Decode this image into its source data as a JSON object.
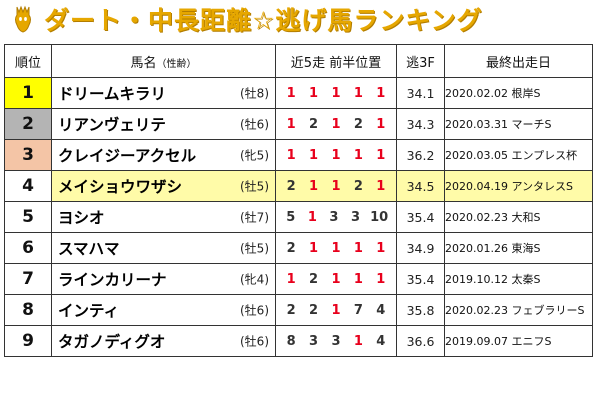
{
  "title": "ダート・中長距離☆逃げ馬ランキング",
  "header": {
    "rank": "順位",
    "name": "馬名",
    "name_sub": "（性齢）",
    "recent": "近5走 前半位置",
    "l3f": "逃3F",
    "last": "最終出走日"
  },
  "colors": {
    "title": "#e6a700",
    "rank1": "#ffff00",
    "rank2": "#b4b4b4",
    "rank3": "#f4c5a6",
    "highlight": "#fffba8",
    "first_position": "#e8001c"
  },
  "rows": [
    {
      "rank": "1",
      "name": "ドリームキラリ",
      "sexage": "(牡8)",
      "runs": [
        "1",
        "1",
        "1",
        "1",
        "1"
      ],
      "l3f": "34.1",
      "last": "2020.02.02 根岸S"
    },
    {
      "rank": "2",
      "name": "リアンヴェリテ",
      "sexage": "(牡6)",
      "runs": [
        "1",
        "2",
        "1",
        "2",
        "1"
      ],
      "l3f": "34.3",
      "last": "2020.03.31 マーチS"
    },
    {
      "rank": "3",
      "name": "クレイジーアクセル",
      "sexage": "(牝5)",
      "runs": [
        "1",
        "1",
        "1",
        "1",
        "1"
      ],
      "l3f": "36.2",
      "last": "2020.03.05 エンプレス杯"
    },
    {
      "rank": "4",
      "name": "メイショウワザシ",
      "sexage": "(牡5)",
      "runs": [
        "2",
        "1",
        "1",
        "2",
        "1"
      ],
      "l3f": "34.5",
      "last": "2020.04.19 アンタレスS"
    },
    {
      "rank": "5",
      "name": "ヨシオ",
      "sexage": "(牡7)",
      "runs": [
        "5",
        "1",
        "3",
        "3",
        "10"
      ],
      "l3f": "35.4",
      "last": "2020.02.23 大和S"
    },
    {
      "rank": "6",
      "name": "スマハマ",
      "sexage": "(牡5)",
      "runs": [
        "2",
        "1",
        "1",
        "1",
        "1"
      ],
      "l3f": "34.9",
      "last": "2020.01.26 東海S"
    },
    {
      "rank": "7",
      "name": "ラインカリーナ",
      "sexage": "(牝4)",
      "runs": [
        "1",
        "2",
        "1",
        "1",
        "1"
      ],
      "l3f": "35.4",
      "last": "2019.10.12 太秦S"
    },
    {
      "rank": "8",
      "name": "インティ",
      "sexage": "(牡6)",
      "runs": [
        "2",
        "2",
        "1",
        "7",
        "4"
      ],
      "l3f": "35.8",
      "last": "2020.02.23 フェブラリーS"
    },
    {
      "rank": "9",
      "name": "タガノディグオ",
      "sexage": "(牡6)",
      "runs": [
        "8",
        "3",
        "3",
        "1",
        "4"
      ],
      "l3f": "36.6",
      "last": "2019.09.07 エニフS"
    }
  ]
}
